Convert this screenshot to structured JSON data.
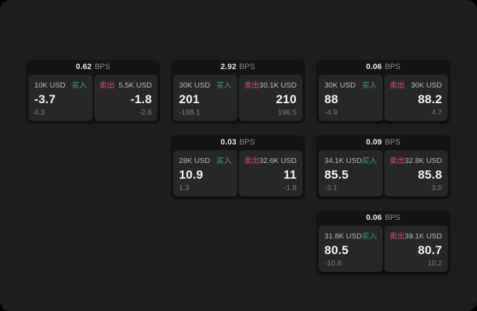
{
  "labels": {
    "bps_suffix": "BPS",
    "buy": "买入",
    "sell": "卖出"
  },
  "colors": {
    "buy_accent": "#47a35d",
    "sell_accent": "#cc5566",
    "page_bg": "#1d1d1e",
    "card_bg": "#141415",
    "panel_bg": "#27272a"
  },
  "cards": [
    {
      "bps": "0.62",
      "buy": {
        "size": "10K USD",
        "price": "-3.7",
        "delta": "4.3"
      },
      "sell": {
        "size": "5.5K USD",
        "price": "-1.8",
        "delta": "-2.6"
      }
    },
    {
      "bps": "2.92",
      "buy": {
        "size": "30K USD",
        "price": "201",
        "delta": "-188.1"
      },
      "sell": {
        "size": "30.1K USD",
        "price": "210",
        "delta": "196.5"
      }
    },
    {
      "bps": "0.06",
      "buy": {
        "size": "30K USD",
        "price": "88",
        "delta": "-4.9"
      },
      "sell": {
        "size": "30K USD",
        "price": "88.2",
        "delta": "4.7"
      }
    },
    {
      "bps": "0.03",
      "buy": {
        "size": "28K USD",
        "price": "10.9",
        "delta": "1.3"
      },
      "sell": {
        "size": "32.6K USD",
        "price": "11",
        "delta": "-1.8"
      }
    },
    {
      "bps": "0.09",
      "buy": {
        "size": "34.1K USD",
        "price": "85.5",
        "delta": "-3.1"
      },
      "sell": {
        "size": "32.8K USD",
        "price": "85.8",
        "delta": "3.0"
      }
    },
    {
      "bps": "0.06",
      "buy": {
        "size": "31.8K USD",
        "price": "80.5",
        "delta": "-10.8"
      },
      "sell": {
        "size": "39.1K USD",
        "price": "80.7",
        "delta": "10.2"
      }
    }
  ]
}
